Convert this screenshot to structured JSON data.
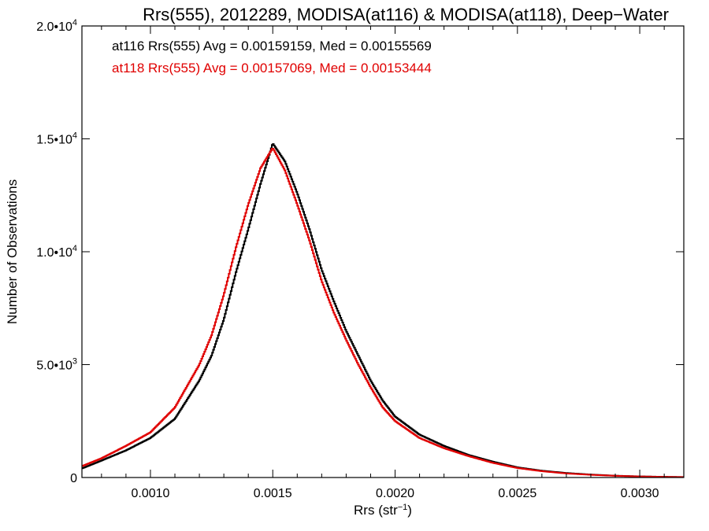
{
  "chart_data": {
    "type": "line",
    "title": "Rrs(555), 2012289, MODISA(at116) & MODISA(at118), Deep−Water",
    "xlabel": "Rrs (str",
    "xlabel_sup": "−1",
    "xlabel_tail": ")",
    "ylabel": "Number of Observations",
    "xlim": [
      0.00072,
      0.00318
    ],
    "ylim": [
      0,
      20000
    ],
    "xticks": [
      {
        "value": 0.001,
        "label": "0.0010"
      },
      {
        "value": 0.0015,
        "label": "0.0015"
      },
      {
        "value": 0.002,
        "label": "0.0020"
      },
      {
        "value": 0.0025,
        "label": "0.0025"
      },
      {
        "value": 0.003,
        "label": "0.0030"
      }
    ],
    "yticks": [
      {
        "value": 0,
        "label": "0",
        "sup": ""
      },
      {
        "value": 5000,
        "label": "5.0•10",
        "sup": "3"
      },
      {
        "value": 10000,
        "label": "1.0•10",
        "sup": "4"
      },
      {
        "value": 15000,
        "label": "1.5•10",
        "sup": "4"
      },
      {
        "value": 20000,
        "label": "2.0•10",
        "sup": "4"
      }
    ],
    "legend_placement": "top-left",
    "x": [
      0.00072,
      0.0008,
      0.0009,
      0.001,
      0.0011,
      0.0012,
      0.00125,
      0.0013,
      0.00135,
      0.0014,
      0.00145,
      0.0015,
      0.00155,
      0.0016,
      0.00165,
      0.0017,
      0.00175,
      0.0018,
      0.00185,
      0.0019,
      0.00195,
      0.002,
      0.0021,
      0.0022,
      0.0023,
      0.0024,
      0.0025,
      0.0026,
      0.0027,
      0.0028,
      0.0029,
      0.003,
      0.0031,
      0.00318
    ],
    "series": [
      {
        "name": "at116 Rrs(555) Avg = 0.00159159, Med = 0.00155569",
        "color": "#000000",
        "values": [
          400,
          750,
          1200,
          1750,
          2600,
          4300,
          5400,
          7000,
          9100,
          11000,
          13000,
          14800,
          14000,
          12600,
          11000,
          9200,
          7800,
          6500,
          5400,
          4300,
          3400,
          2700,
          1900,
          1400,
          1000,
          700,
          450,
          300,
          200,
          130,
          80,
          50,
          30,
          20
        ]
      },
      {
        "name": "at118 Rrs(555) Avg = 0.00157069, Med = 0.00153444",
        "color": "#e00000",
        "values": [
          500,
          850,
          1400,
          2000,
          3100,
          5000,
          6300,
          8100,
          10200,
          12100,
          13700,
          14600,
          13600,
          12100,
          10500,
          8700,
          7300,
          6100,
          5000,
          4000,
          3100,
          2500,
          1750,
          1300,
          950,
          650,
          420,
          280,
          180,
          120,
          75,
          45,
          28,
          18
        ]
      }
    ]
  }
}
